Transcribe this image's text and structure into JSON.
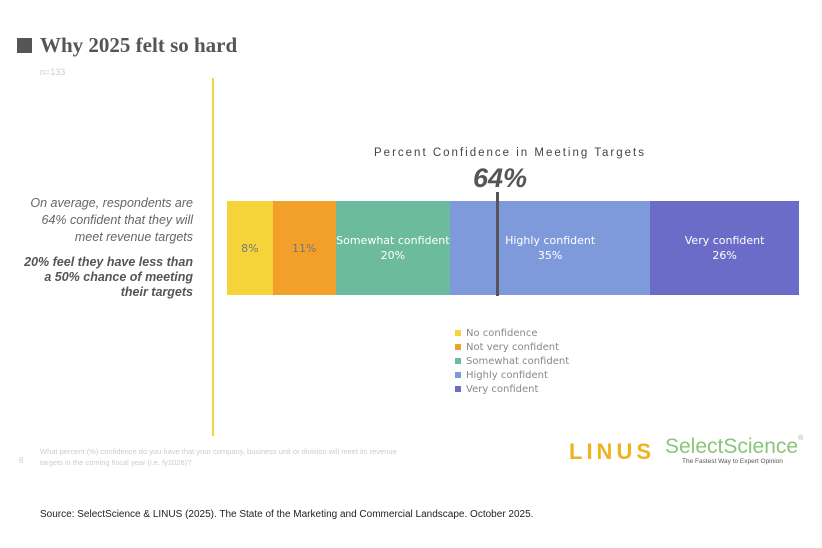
{
  "title": "Why 2025 felt so hard",
  "sample": "n=133",
  "callout": {
    "average": "On average, respondents are 64% confident that they will meet revenue targets",
    "hard": "20% feel they have less than a 50% chance of meeting their targets"
  },
  "chart_data": {
    "type": "bar",
    "orientation": "horizontal-stacked",
    "title": "Percent Confidence in Meeting Targets",
    "annotation": "64%",
    "series": [
      {
        "name": "No confidence",
        "value": 8,
        "label": "8%",
        "color": "#F5D43A"
      },
      {
        "name": "Not very confident",
        "value": 11,
        "label": "11%",
        "color": "#F3A02B"
      },
      {
        "name": "Somewhat confident",
        "value": 20,
        "label": "20%",
        "color": "#6DBB9E",
        "inner_label": "Somewhat confident"
      },
      {
        "name": "Highly confident",
        "value": 35,
        "label": "35%",
        "color": "#7F9ADB",
        "inner_label": "Highly confident"
      },
      {
        "name": "Very confident",
        "value": 26,
        "label": "26%",
        "color": "#6B6CC8",
        "inner_label": "Very confident"
      }
    ],
    "legend": "bottom"
  },
  "footer": {
    "question": "What percent (%) confidence do you have that your company, business unit or division will meet its revenue targets in the coming fiscal year (i.e. fy2026)?",
    "page": "6",
    "logo_linus": "LINUS",
    "logo_ss": "SelectScience",
    "logo_ss_reg": "®",
    "ss_tagline": "The Fastest Way to Expert Opinion",
    "source": "Source: SelectScience & LINUS (2025). The State of the Marketing and Commercial Landscape. October 2025."
  }
}
